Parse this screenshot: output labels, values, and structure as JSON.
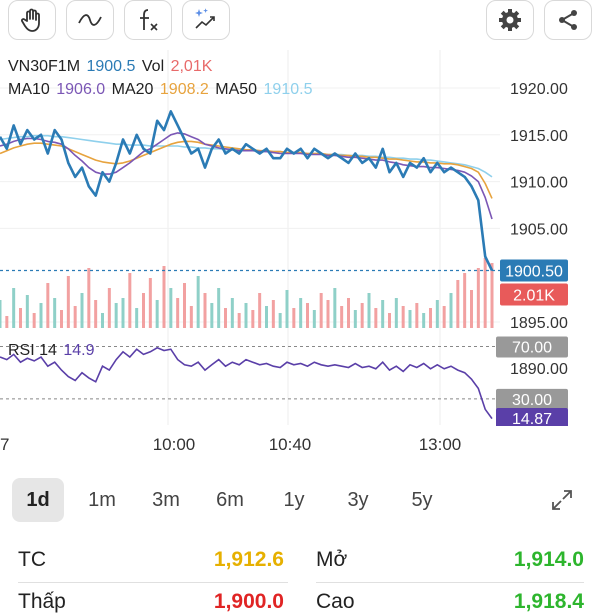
{
  "toolbar": {
    "buttons": [
      {
        "name": "hand-icon"
      },
      {
        "name": "line-tool-icon"
      },
      {
        "name": "function-icon"
      },
      {
        "name": "magic-chart-icon"
      },
      {
        "name": "gear-icon"
      },
      {
        "name": "share-icon"
      }
    ]
  },
  "legend": {
    "symbol": "VN30F1M",
    "price": "1900.5",
    "vol_label": "Vol",
    "vol": "2,01K",
    "ma10_label": "MA10",
    "ma10": "1906.0",
    "ma20_label": "MA20",
    "ma20": "1908.2",
    "ma50_label": "MA50",
    "ma50": "1910.5",
    "rsi_label": "RSI 14",
    "rsi": "14.9"
  },
  "colors": {
    "price": "#2b7bb5",
    "ma10": "#7b57b5",
    "ma20": "#e7a33e",
    "ma50": "#8fd0ec",
    "vol": "#e86a6a",
    "rsi": "#5a3fa8",
    "vol_up": "#8fd0c8",
    "vol_down": "#f2a1a1"
  },
  "chart_data": {
    "type": "line",
    "y_axis": {
      "ticks": [
        "1920.00",
        "1915.00",
        "1910.00",
        "1905.00",
        "1900.50",
        "1895.00",
        "1890.00"
      ],
      "range": [
        1893,
        1922
      ]
    },
    "x_axis": {
      "ticks": [
        "7",
        "10:00",
        "10:40",
        "13:00"
      ]
    },
    "current_price_label": "1900.50",
    "current_vol_label": "2.01K",
    "rsi_levels": [
      "70.00",
      "30.00"
    ],
    "rsi_current_label": "14.87",
    "series": [
      {
        "name": "VN30F1M",
        "values": [
          1914.8,
          1913.5,
          1916.0,
          1914.0,
          1915.5,
          1914.5,
          1915.0,
          1913.0,
          1915.5,
          1914.5,
          1912.0,
          1910.5,
          1911.5,
          1909.5,
          1908.5,
          1911.0,
          1910.0,
          1912.0,
          1914.5,
          1913.0,
          1915.0,
          1913.5,
          1913.0,
          1916.5,
          1915.5,
          1917.5,
          1916.0,
          1914.5,
          1913.0,
          1913.5,
          1911.5,
          1913.5,
          1914.5,
          1913.0,
          1913.5,
          1913.0,
          1914.0,
          1913.5,
          1913.0,
          1913.5,
          1912.5,
          1912.5,
          1913.5,
          1913.0,
          1913.5,
          1912.5,
          1913.5,
          1913.0,
          1912.5,
          1913.0,
          1912.5,
          1912.0,
          1913.0,
          1912.0,
          1912.5,
          1911.5,
          1913.5,
          1911.0,
          1912.0,
          1910.5,
          1912.0,
          1911.5,
          1912.5,
          1911.0,
          1912.0,
          1911.0,
          1911.5,
          1911.0,
          1910.5,
          1909.5,
          1908.0,
          1902.0,
          1900.5
        ]
      },
      {
        "name": "MA10",
        "values": [
          1913.8,
          1914.0,
          1914.3,
          1914.5,
          1914.6,
          1914.6,
          1914.5,
          1914.3,
          1914.2,
          1914.0,
          1913.5,
          1912.8,
          1912.2,
          1911.5,
          1911.0,
          1910.8,
          1910.8,
          1911.0,
          1911.5,
          1912.0,
          1912.6,
          1913.2,
          1913.5,
          1914.0,
          1914.5,
          1915.0,
          1915.2,
          1915.1,
          1914.8,
          1914.5,
          1914.0,
          1913.8,
          1913.6,
          1913.5,
          1913.4,
          1913.3,
          1913.3,
          1913.3,
          1913.2,
          1913.2,
          1913.1,
          1913.0,
          1913.0,
          1913.0,
          1913.0,
          1912.9,
          1912.9,
          1912.9,
          1912.8,
          1912.8,
          1912.7,
          1912.6,
          1912.6,
          1912.5,
          1912.4,
          1912.3,
          1912.3,
          1912.1,
          1912.0,
          1911.8,
          1911.7,
          1911.6,
          1911.6,
          1911.5,
          1911.5,
          1911.4,
          1911.3,
          1911.2,
          1911.0,
          1910.6,
          1910.0,
          1908.3,
          1906.0
        ]
      },
      {
        "name": "MA20",
        "values": [
          1913.0,
          1913.3,
          1913.6,
          1913.8,
          1914.0,
          1914.1,
          1914.1,
          1914.0,
          1913.9,
          1913.8,
          1913.5,
          1913.2,
          1912.9,
          1912.6,
          1912.3,
          1912.1,
          1912.0,
          1911.9,
          1912.0,
          1912.2,
          1912.5,
          1912.8,
          1913.1,
          1913.4,
          1913.7,
          1914.0,
          1914.2,
          1914.3,
          1914.3,
          1914.2,
          1914.0,
          1913.9,
          1913.8,
          1913.7,
          1913.6,
          1913.5,
          1913.4,
          1913.4,
          1913.3,
          1913.3,
          1913.2,
          1913.2,
          1913.1,
          1913.1,
          1913.1,
          1913.0,
          1913.0,
          1913.0,
          1912.9,
          1912.9,
          1912.8,
          1912.8,
          1912.7,
          1912.7,
          1912.6,
          1912.6,
          1912.5,
          1912.4,
          1912.4,
          1912.3,
          1912.2,
          1912.1,
          1912.1,
          1912.0,
          1912.0,
          1911.9,
          1911.9,
          1911.8,
          1911.6,
          1911.4,
          1911.0,
          1909.8,
          1908.2
        ]
      },
      {
        "name": "MA50",
        "values": [
          1914.5,
          1914.6,
          1914.7,
          1914.8,
          1914.8,
          1914.9,
          1914.9,
          1914.9,
          1914.8,
          1914.8,
          1914.7,
          1914.6,
          1914.5,
          1914.4,
          1914.3,
          1914.2,
          1914.1,
          1914.0,
          1914.0,
          1913.9,
          1913.9,
          1913.9,
          1913.8,
          1913.8,
          1913.8,
          1913.8,
          1913.8,
          1913.7,
          1913.7,
          1913.6,
          1913.6,
          1913.5,
          1913.5,
          1913.4,
          1913.4,
          1913.4,
          1913.3,
          1913.3,
          1913.3,
          1913.2,
          1913.2,
          1913.2,
          1913.1,
          1913.1,
          1913.1,
          1913.0,
          1913.0,
          1913.0,
          1912.9,
          1912.9,
          1912.9,
          1912.8,
          1912.8,
          1912.8,
          1912.7,
          1912.7,
          1912.6,
          1912.6,
          1912.5,
          1912.5,
          1912.4,
          1912.4,
          1912.3,
          1912.3,
          1912.2,
          1912.1,
          1912.0,
          1911.9,
          1911.8,
          1911.6,
          1911.4,
          1911.0,
          1910.5
        ]
      }
    ],
    "rsi_values": [
      62,
      60,
      64,
      58,
      61,
      59,
      62,
      55,
      58,
      52,
      47,
      44,
      50,
      46,
      43,
      55,
      52,
      60,
      66,
      62,
      68,
      64,
      66,
      69,
      67,
      68,
      60,
      56,
      55,
      58,
      52,
      56,
      60,
      55,
      58,
      56,
      60,
      58,
      56,
      57,
      55,
      54,
      58,
      56,
      57,
      55,
      58,
      56,
      55,
      56,
      55,
      54,
      57,
      54,
      55,
      53,
      58,
      52,
      55,
      51,
      56,
      54,
      57,
      53,
      56,
      53,
      55,
      52,
      50,
      45,
      38,
      22,
      14.87
    ],
    "volume_values": [
      28,
      12,
      40,
      20,
      33,
      15,
      25,
      45,
      30,
      18,
      52,
      22,
      35,
      60,
      28,
      15,
      40,
      25,
      30,
      55,
      20,
      35,
      50,
      28,
      62,
      40,
      30,
      45,
      22,
      52,
      35,
      25,
      40,
      20,
      30,
      15,
      25,
      18,
      35,
      22,
      28,
      15,
      38,
      20,
      30,
      25,
      18,
      35,
      28,
      40,
      22,
      30,
      18,
      25,
      35,
      20,
      28,
      15,
      30,
      22,
      18,
      25,
      15,
      20,
      28,
      22,
      35,
      48,
      55,
      38,
      60,
      70,
      65
    ]
  },
  "ranges": [
    "1d",
    "1m",
    "3m",
    "6m",
    "1y",
    "3y",
    "5y"
  ],
  "active_range": "1d",
  "stats": {
    "tc_label": "TC",
    "tc_value": "1,912.6",
    "open_label": "Mở",
    "open_value": "1,914.0",
    "low_label": "Thấp",
    "low_value": "1,900.0",
    "high_label": "Cao",
    "high_value": "1,918.4"
  }
}
